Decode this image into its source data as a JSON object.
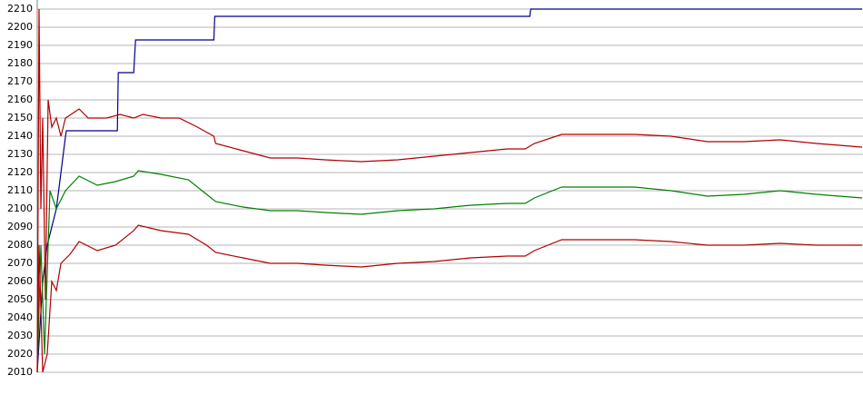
{
  "chart_data": {
    "type": "line",
    "xlim": [
      44,
      950
    ],
    "ylim": [
      2010,
      2210
    ],
    "yticks": [
      2010,
      2020,
      2030,
      2040,
      2050,
      2060,
      2070,
      2080,
      2090,
      2100,
      2110,
      2120,
      2130,
      2140,
      2150,
      2160,
      2170,
      2180,
      2190,
      2200,
      2210
    ],
    "grid": true,
    "series": [
      {
        "color": "#00008b",
        "x": [
          44,
          50,
          55,
          60,
          65,
          70,
          75,
          76,
          132,
          133,
          150,
          152,
          238,
          239,
          585,
          586,
          950
        ],
        "values": [
          2010,
          2060,
          2080,
          2090,
          2100,
          2120,
          2140,
          2143,
          2143,
          2175,
          2175,
          2193,
          2193,
          2206,
          2206,
          2210,
          2210
        ]
      },
      {
        "color": "#b00000",
        "x": [
          44,
          46,
          48,
          50,
          53,
          56,
          60,
          65,
          70,
          75,
          90,
          100,
          120,
          135,
          150,
          160,
          180,
          200,
          220,
          238,
          240,
          270,
          300,
          330,
          360,
          400,
          440,
          480,
          520,
          560,
          580,
          590,
          620,
          660,
          700,
          740,
          780,
          820,
          860,
          900,
          950
        ],
        "values": [
          2010,
          2210,
          2100,
          2150,
          2050,
          2160,
          2145,
          2150,
          2140,
          2150,
          2155,
          2150,
          2150,
          2152,
          2150,
          2152,
          2150,
          2150,
          2145,
          2140,
          2136,
          2132,
          2128,
          2128,
          2127,
          2126,
          2127,
          2129,
          2131,
          2133,
          2133,
          2136,
          2141,
          2141,
          2141,
          2140,
          2137,
          2137,
          2138,
          2136,
          2134
        ]
      },
      {
        "color": "#008000",
        "x": [
          44,
          48,
          52,
          58,
          65,
          75,
          90,
          110,
          130,
          150,
          155,
          180,
          210,
          230,
          240,
          270,
          300,
          330,
          360,
          400,
          440,
          480,
          520,
          560,
          580,
          590,
          620,
          660,
          700,
          740,
          780,
          820,
          860,
          900,
          950
        ],
        "values": [
          2010,
          2080,
          2020,
          2110,
          2100,
          2110,
          2118,
          2113,
          2115,
          2118,
          2121,
          2119,
          2116,
          2108,
          2104,
          2101,
          2099,
          2099,
          2098,
          2097,
          2099,
          2100,
          2102,
          2103,
          2103,
          2106,
          2112,
          2112,
          2112,
          2110,
          2107,
          2108,
          2110,
          2108,
          2106
        ]
      },
      {
        "color": "#b00000",
        "x": [
          44,
          46,
          50,
          55,
          60,
          65,
          70,
          80,
          90,
          110,
          130,
          150,
          155,
          180,
          210,
          230,
          240,
          270,
          300,
          330,
          360,
          400,
          440,
          480,
          520,
          560,
          580,
          590,
          620,
          660,
          700,
          740,
          780,
          820,
          860,
          900,
          950
        ],
        "values": [
          2010,
          2080,
          2010,
          2020,
          2060,
          2055,
          2070,
          2075,
          2082,
          2077,
          2080,
          2088,
          2091,
          2088,
          2086,
          2080,
          2076,
          2073,
          2070,
          2070,
          2069,
          2068,
          2070,
          2071,
          2073,
          2074,
          2074,
          2077,
          2083,
          2083,
          2083,
          2082,
          2080,
          2080,
          2081,
          2080,
          2080
        ]
      }
    ]
  }
}
